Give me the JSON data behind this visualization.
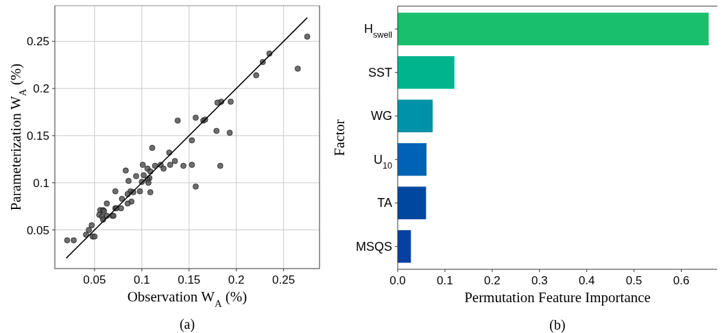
{
  "chart_data": [
    {
      "type": "scatter",
      "xlabel": "Observation W$_{A}$ (%)",
      "ylabel": "Parameterization W$_{A}$ (%)",
      "annotations": [
        "(a)"
      ],
      "xlim": [
        0.008,
        0.288
      ],
      "ylim": [
        0.009,
        0.288
      ],
      "xticks": [
        0.05,
        0.1,
        0.15,
        0.2,
        0.25
      ],
      "yticks": [
        0.05,
        0.1,
        0.15,
        0.2,
        0.25
      ],
      "grid": true,
      "series": [
        {
          "type": "scatter",
          "marker": "circle",
          "color": "#555555",
          "x": [
            0.275,
            0.265,
            0.235,
            0.228,
            0.221,
            0.194,
            0.184,
            0.18,
            0.138,
            0.157,
            0.165,
            0.167,
            0.179,
            0.193,
            0.153,
            0.111,
            0.129,
            0.101,
            0.12,
            0.114,
            0.123,
            0.13,
            0.135,
            0.144,
            0.153,
            0.183,
            0.157,
            0.106,
            0.109,
            0.083,
            0.094,
            0.102,
            0.108,
            0.106,
            0.1,
            0.107,
            0.086,
            0.109,
            0.098,
            0.072,
            0.088,
            0.091,
            0.085,
            0.079,
            0.089,
            0.085,
            0.063,
            0.078,
            0.072,
            0.073,
            0.056,
            0.059,
            0.06,
            0.055,
            0.058,
            0.063,
            0.069,
            0.07,
            0.059,
            0.047,
            0.044,
            0.041,
            0.048,
            0.05,
            0.021,
            0.028
          ],
          "values": [
            0.255,
            0.221,
            0.237,
            0.228,
            0.214,
            0.186,
            0.186,
            0.185,
            0.166,
            0.169,
            0.166,
            0.167,
            0.155,
            0.153,
            0.145,
            0.137,
            0.132,
            0.119,
            0.119,
            0.118,
            0.115,
            0.119,
            0.123,
            0.118,
            0.119,
            0.118,
            0.096,
            0.115,
            0.112,
            0.113,
            0.107,
            0.108,
            0.105,
            0.103,
            0.101,
            0.1,
            0.102,
            0.09,
            0.091,
            0.091,
            0.091,
            0.09,
            0.088,
            0.083,
            0.08,
            0.078,
            0.078,
            0.073,
            0.073,
            0.073,
            0.071,
            0.071,
            0.07,
            0.066,
            0.064,
            0.065,
            0.065,
            0.065,
            0.061,
            0.055,
            0.05,
            0.045,
            0.043,
            0.043,
            0.039,
            0.039
          ]
        },
        {
          "type": "line",
          "color": "#000000",
          "x": [
            0.02,
            0.275
          ],
          "values": [
            0.02,
            0.275
          ]
        }
      ]
    },
    {
      "type": "bar",
      "orientation": "horizontal",
      "xlabel": "Permutation Feature Importance",
      "ylabel": "Factor",
      "annotations": [
        "(b)"
      ],
      "categories": [
        "H$_{swell}$",
        "SST",
        "WG",
        "U$_{10}$",
        "TA",
        "MSQS"
      ],
      "values": [
        0.658,
        0.12,
        0.074,
        0.061,
        0.06,
        0.028
      ],
      "colors": [
        "#18c06e",
        "#00b58e",
        "#0092a8",
        "#0062b4",
        "#0047a0",
        "#0541a0"
      ],
      "xlim": [
        0,
        0.676
      ],
      "xticks": [
        {
          "value": 0,
          "label": "0.0"
        },
        0.1,
        0.2,
        0.3,
        0.4,
        0.5,
        0.6
      ]
    }
  ]
}
